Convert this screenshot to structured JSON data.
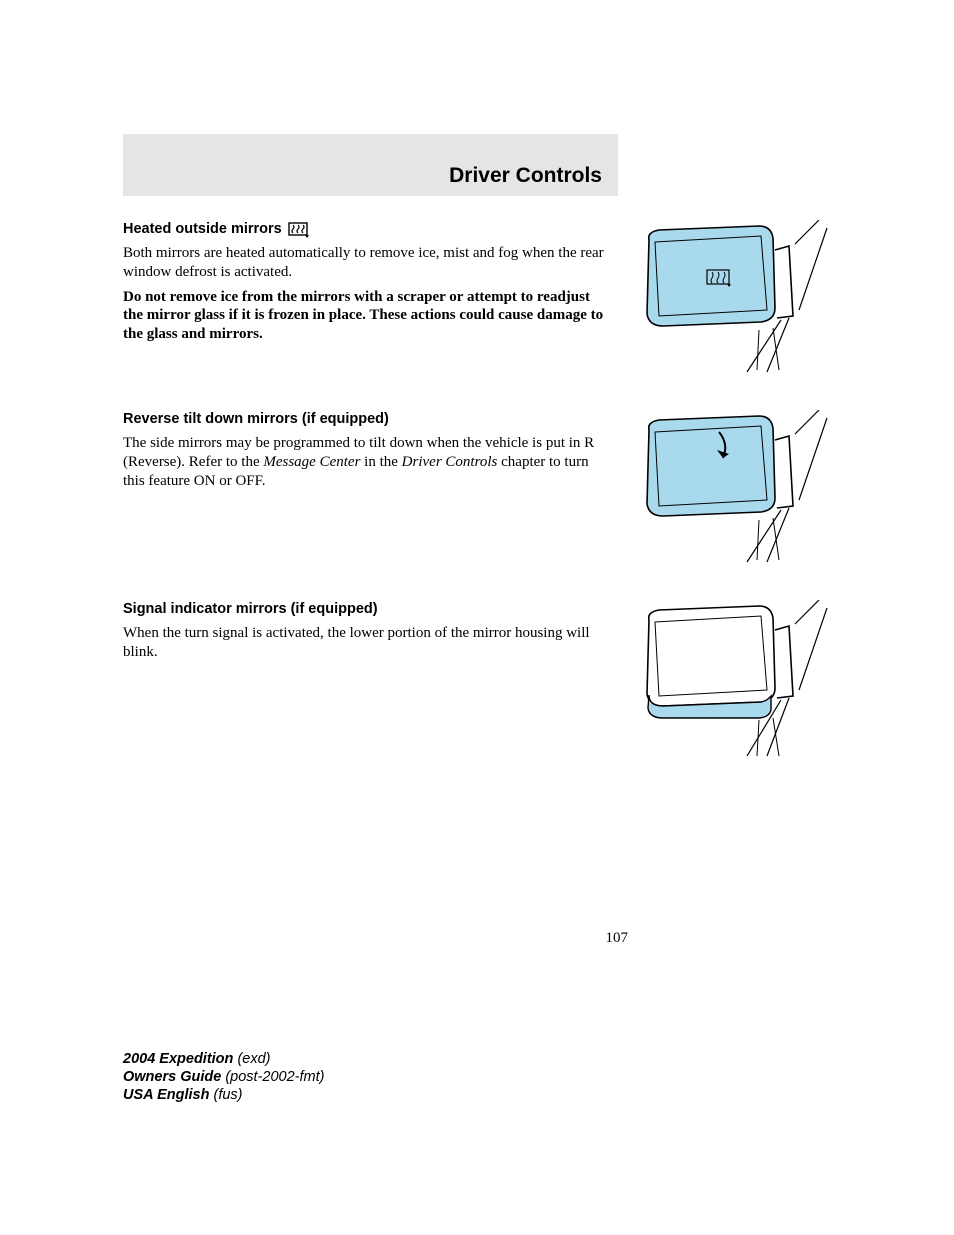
{
  "chapter_title": "Driver Controls",
  "page_number": "107",
  "colors": {
    "mirror_fill": "#a9d9ed",
    "line": "#000000",
    "header_bg": "#e5e5e5",
    "bg": "#ffffff"
  },
  "sections": [
    {
      "heading": "Heated outside mirrors",
      "has_icon": true,
      "paras": [
        {
          "text": "Both mirrors are heated automatically to remove ice, mist and fog when the rear window defrost is activated.",
          "bold": false
        },
        {
          "text": "Do not remove ice from the mirrors with a scraper or attempt to readjust the mirror glass if it is frozen in place. These actions could cause damage to the glass and mirrors.",
          "bold": true
        }
      ],
      "figure": "heated"
    },
    {
      "heading": "Reverse tilt down mirrors (if equipped)",
      "has_icon": false,
      "paras_html": "The side mirrors may be programmed to tilt down when the vehicle is put in R (Reverse). Refer to the <span class=\"italic\">Message Center</span> in the <span class=\"italic\">Driver Controls</span> chapter to turn this feature ON or OFF.",
      "figure": "tilt"
    },
    {
      "heading": "Signal indicator mirrors (if equipped)",
      "has_icon": false,
      "paras": [
        {
          "text": "When the turn signal is activated, the lower portion of the mirror housing will blink.",
          "bold": false
        }
      ],
      "figure": "signal"
    }
  ],
  "footer": {
    "line1_bold": "2004 Expedition",
    "line1_rest": "(exd)",
    "line2_bold": "Owners Guide",
    "line2_rest": "(post-2002-fmt)",
    "line3_bold": "USA English",
    "line3_rest": "(fus)"
  },
  "icon": {
    "name": "rear-defrost-icon"
  }
}
